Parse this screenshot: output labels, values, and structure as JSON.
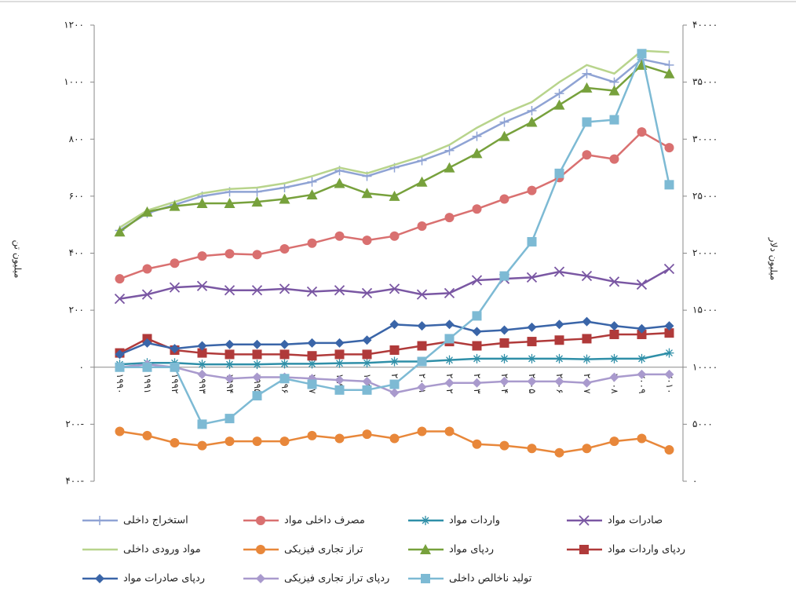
{
  "chart_data": {
    "type": "line",
    "y_label": "میلیون تن",
    "y2_label": "میلیون دلار",
    "categories": [
      "۱۹۹۰",
      "۱۹۹۱",
      "۱۹۹۲",
      "۱۹۹۳",
      "۱۹۹۴",
      "۱۹۹۵",
      "۱۹۹۶",
      "۱۹۹۷",
      "۱۹۹۸",
      "۱۹۹۹",
      "۲۰۰۰",
      "۲۰۰۱",
      "۲۰۰۲",
      "۲۰۰۳",
      "۲۰۰۴",
      "۲۰۰۵",
      "۲۰۰۶",
      "۲۰۰۷",
      "۲۰۰۸",
      "۲۰۰۹",
      "۲۰۱۰"
    ],
    "ylim": [
      -400,
      1200
    ],
    "yticks": [
      {
        "value": 1200,
        "label": "۱۲۰۰"
      },
      {
        "value": 1000,
        "label": "۱۰۰۰"
      },
      {
        "value": 800,
        "label": "۸۰۰"
      },
      {
        "value": 600,
        "label": "۶۰۰"
      },
      {
        "value": 400,
        "label": "۴۰۰"
      },
      {
        "value": 200,
        "label": "۲۰۰"
      },
      {
        "value": 0,
        "label": "۰"
      },
      {
        "value": -200,
        "label": "۲۰۰-"
      },
      {
        "value": -400,
        "label": "۴۰۰-"
      }
    ],
    "y2lim": [
      0,
      40000
    ],
    "y2ticks": [
      {
        "value": 40000,
        "label": "۴۰۰۰۰"
      },
      {
        "value": 35000,
        "label": "۳۵۰۰۰"
      },
      {
        "value": 30000,
        "label": "۳۰۰۰۰"
      },
      {
        "value": 25000,
        "label": "۲۵۰۰۰"
      },
      {
        "value": 20000,
        "label": "۲۰۰۰۰"
      },
      {
        "value": 15000,
        "label": "۱۵۰۰۰"
      },
      {
        "value": 10000,
        "label": "۱۰۰۰۰"
      },
      {
        "value": 5000,
        "label": "۵۰۰۰"
      },
      {
        "value": 0,
        "label": "۰"
      }
    ],
    "grid": false,
    "legend": "bottom",
    "series": [
      {
        "name": "استخراج داخلی",
        "color": "#8fa3d4",
        "marker": "plus",
        "values": [
          480,
          540,
          570,
          600,
          615,
          615,
          630,
          650,
          690,
          670,
          700,
          725,
          760,
          810,
          860,
          900,
          960,
          1030,
          1000,
          1080,
          1060
        ]
      },
      {
        "name": "مصرف داخلی مواد",
        "color": "#d97070",
        "marker": "circle",
        "values": [
          310,
          345,
          365,
          390,
          398,
          395,
          415,
          435,
          460,
          445,
          460,
          495,
          525,
          555,
          590,
          620,
          665,
          745,
          730,
          825,
          770
        ]
      },
      {
        "name": "واردات مواد",
        "color": "#2f8fa8",
        "marker": "asterisk",
        "values": [
          10,
          15,
          15,
          10,
          10,
          10,
          12,
          12,
          14,
          15,
          20,
          20,
          25,
          30,
          30,
          30,
          30,
          28,
          30,
          30,
          50
        ]
      },
      {
        "name": "صادرات مواد",
        "color": "#7a57a3",
        "marker": "x",
        "values": [
          240,
          255,
          280,
          285,
          270,
          270,
          275,
          265,
          270,
          260,
          275,
          255,
          260,
          305,
          310,
          315,
          335,
          320,
          300,
          290,
          345
        ]
      },
      {
        "name": "مواد ورودی داخلی",
        "color": "#b8d48c",
        "marker": "none",
        "values": [
          490,
          550,
          580,
          610,
          625,
          630,
          645,
          670,
          700,
          680,
          710,
          740,
          780,
          840,
          890,
          930,
          1000,
          1060,
          1030,
          1110,
          1105
        ]
      },
      {
        "name": "تراز تجاری فیزیکی",
        "color": "#e8873a",
        "marker": "circle",
        "values": [
          -225,
          -240,
          -265,
          -275,
          -260,
          -260,
          -260,
          -240,
          -250,
          -235,
          -250,
          -225,
          -225,
          -270,
          -275,
          -285,
          -300,
          -285,
          -260,
          -250,
          -290
        ]
      },
      {
        "name": "ردپای مواد",
        "color": "#77a13c",
        "marker": "triangle",
        "values": [
          475,
          545,
          565,
          575,
          575,
          580,
          590,
          605,
          645,
          610,
          600,
          650,
          700,
          750,
          810,
          860,
          920,
          980,
          970,
          1060,
          1030
        ]
      },
      {
        "name": "ردپای واردات مواد",
        "color": "#b03a3a",
        "marker": "square",
        "values": [
          50,
          100,
          60,
          50,
          45,
          45,
          45,
          40,
          45,
          45,
          60,
          75,
          90,
          75,
          85,
          90,
          95,
          100,
          115,
          115,
          120
        ]
      },
      {
        "name": "ردپای صادرات مواد",
        "color": "#3a65a8",
        "marker": "diamond",
        "values": [
          45,
          85,
          65,
          75,
          80,
          80,
          80,
          85,
          85,
          95,
          150,
          145,
          150,
          125,
          130,
          140,
          150,
          160,
          145,
          135,
          145
        ]
      },
      {
        "name": "ردپای تراز تجاری فیزیکی",
        "color": "#a99acd",
        "marker": "diamond",
        "values": [
          0,
          10,
          0,
          -25,
          -40,
          -35,
          -35,
          -40,
          -45,
          -50,
          -90,
          -70,
          -55,
          -55,
          -50,
          -50,
          -50,
          -55,
          -35,
          -25,
          -25
        ]
      },
      {
        "name": "تولید ناخالص داخلی",
        "color": "#7dbad4",
        "marker": "square",
        "axis": "y2",
        "values": [
          10000,
          10000,
          10000,
          5000,
          5500,
          7500,
          9000,
          8500,
          8000,
          8000,
          8500,
          10500,
          12500,
          14500,
          18000,
          21000,
          27000,
          31500,
          31700,
          37500,
          26000
        ]
      }
    ]
  }
}
